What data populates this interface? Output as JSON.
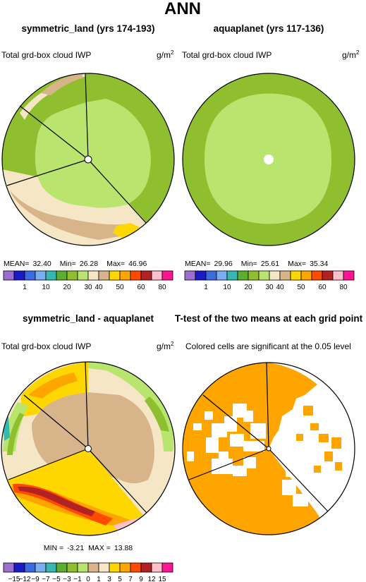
{
  "figure": {
    "title": "ANN",
    "panels": [
      {
        "title": "symmetric_land (yrs 174-193)",
        "variable": "Total grd-box cloud IWP",
        "units": "g/m",
        "units_sup": "2",
        "stats": {
          "mean_label": "MEAN=",
          "mean": "32.40",
          "min_label": "Min=",
          "min": "26.28",
          "max_label": "Max=",
          "max": "46.96"
        }
      },
      {
        "title": "aquaplanet (yrs 117-136)",
        "variable": "Total grd-box cloud IWP",
        "units": "g/m",
        "units_sup": "2",
        "stats": {
          "mean_label": "MEAN=",
          "mean": "29.96",
          "min_label": "Min=",
          "min": "25.61",
          "max_label": "Max=",
          "max": "35.34"
        }
      },
      {
        "title": "symmetric_land - aquaplanet",
        "variable": "Total grd-box cloud IWP",
        "units": "g/m",
        "units_sup": "2",
        "stats": {
          "min_label": "MIN =",
          "min": "-3.21",
          "max_label": "MAX =",
          "max": "13.88"
        }
      },
      {
        "title": "T-test of the two means at each grid point",
        "variable": "Colored cells are significant at the 0.05 level"
      }
    ]
  },
  "chart_data": [
    {
      "type": "heatmap",
      "projection": "polar",
      "title": "symmetric_land (yrs 174-193)",
      "field": "Total grd-box cloud IWP",
      "mean": 32.4,
      "min": 26.28,
      "max": 46.96,
      "levels": [
        1,
        10,
        20,
        30,
        40,
        50,
        60,
        80
      ],
      "colors": [
        "#9b6fd1",
        "#1a1ac8",
        "#3c6be0",
        "#79aef0",
        "#35b8b0",
        "#5ab02e",
        "#8fbf2f",
        "#b9e56e",
        "#f5e7c6",
        "#d8b48a",
        "#ffd700",
        "#ffa500",
        "#ff4a00",
        "#b22222",
        "#ffc0cb",
        "#ff1493"
      ]
    },
    {
      "type": "heatmap",
      "projection": "polar",
      "title": "aquaplanet (yrs 117-136)",
      "field": "Total grd-box cloud IWP",
      "mean": 29.96,
      "min": 25.61,
      "max": 35.34,
      "levels": [
        1,
        10,
        20,
        30,
        40,
        50,
        60,
        80
      ],
      "colors": [
        "#9b6fd1",
        "#1a1ac8",
        "#3c6be0",
        "#79aef0",
        "#35b8b0",
        "#5ab02e",
        "#8fbf2f",
        "#b9e56e",
        "#f5e7c6",
        "#d8b48a",
        "#ffd700",
        "#ffa500",
        "#ff4a00",
        "#b22222",
        "#ffc0cb",
        "#ff1493"
      ]
    },
    {
      "type": "heatmap",
      "projection": "polar",
      "title": "symmetric_land - aquaplanet",
      "field": "Total grd-box cloud IWP",
      "min": -3.21,
      "max": 13.88,
      "levels": [
        -15,
        -12,
        -9,
        -7,
        -5,
        -3,
        -1,
        0,
        1,
        3,
        5,
        7,
        9,
        12,
        15
      ],
      "colors": [
        "#9b6fd1",
        "#1a1ac8",
        "#3c6be0",
        "#79aef0",
        "#35b8b0",
        "#5ab02e",
        "#8fbf2f",
        "#b9e56e",
        "#d8b48a",
        "#f5e7c6",
        "#ffd700",
        "#ffa500",
        "#ff4a00",
        "#b22222",
        "#ffc0cb",
        "#ff1493"
      ]
    },
    {
      "type": "heatmap",
      "projection": "polar",
      "title": "T-test of the two means at each grid point",
      "significance_level": 0.05,
      "significant_color": "#ffa500"
    }
  ]
}
